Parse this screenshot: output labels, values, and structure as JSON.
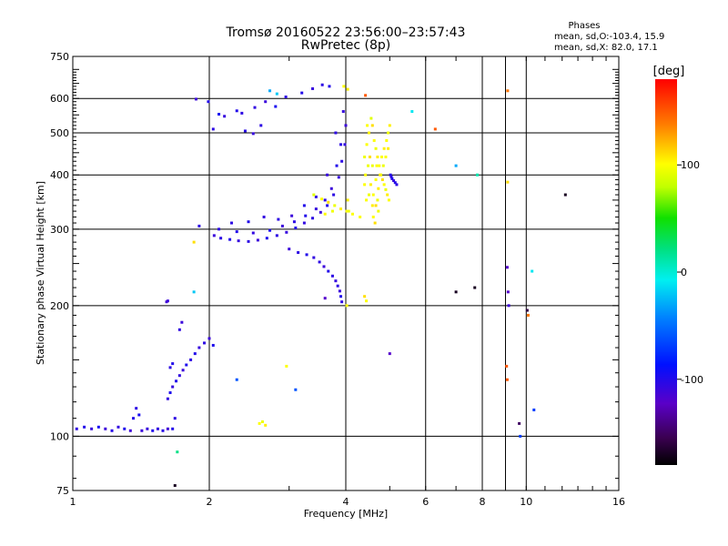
{
  "chart_data": {
    "type": "scatter",
    "title": "Tromsø 20160522 23:56:00–23:57:43",
    "subtitle": "RwPretec (8p)",
    "xlabel": "Frequency [MHz]",
    "ylabel": "Stationary phase Virtual Height [km]",
    "x_scale": "log",
    "y_scale": "log",
    "xlim": [
      1,
      16
    ],
    "ylim": [
      75,
      750
    ],
    "x_ticks": [
      1,
      2,
      4,
      6,
      8,
      9,
      10,
      16
    ],
    "x_tick_labels": [
      "1",
      "2",
      "4",
      "6",
      "8",
      "",
      "10",
      "16"
    ],
    "y_ticks": [
      75,
      100,
      200,
      300,
      400,
      500,
      600,
      750
    ],
    "y_tick_labels": [
      "75",
      "100",
      "200",
      "300",
      "400",
      "500",
      "600",
      "750"
    ],
    "grid": true,
    "legend": {
      "title": "Phases",
      "lines": [
        "mean, sd,O:-103.4, 15.9",
        "mean, sd,X:  82.0, 17.1"
      ]
    },
    "colorbar": {
      "label": "[deg]",
      "range": [
        -180,
        180
      ],
      "ticks": [
        100,
        0,
        -100
      ],
      "tick_labels": [
        "100",
        "0",
        "-100"
      ]
    },
    "series": [
      {
        "values": [
          [
            1.02,
            104,
            -105
          ],
          [
            1.06,
            105,
            -100
          ],
          [
            1.1,
            104,
            -108
          ],
          [
            1.14,
            105,
            -95
          ],
          [
            1.18,
            104,
            -110
          ],
          [
            1.22,
            103,
            -102
          ],
          [
            1.26,
            105,
            -106
          ],
          [
            1.3,
            104,
            -98
          ],
          [
            1.34,
            103,
            -112
          ],
          [
            1.36,
            110,
            -100
          ],
          [
            1.38,
            116,
            -104
          ],
          [
            1.4,
            112,
            -96
          ],
          [
            1.42,
            103,
            -110
          ],
          [
            1.46,
            104,
            -108
          ],
          [
            1.5,
            103,
            -100
          ],
          [
            1.54,
            104,
            -106
          ],
          [
            1.58,
            103,
            -102
          ],
          [
            1.62,
            104,
            -112
          ],
          [
            1.66,
            104,
            -100
          ],
          [
            1.68,
            110,
            -104
          ],
          [
            1.62,
            122,
            -106
          ],
          [
            1.64,
            126,
            -98
          ],
          [
            1.66,
            130,
            -108
          ],
          [
            1.69,
            134,
            -100
          ],
          [
            1.72,
            138,
            -106
          ],
          [
            1.75,
            142,
            -110
          ],
          [
            1.78,
            146,
            -98
          ],
          [
            1.82,
            150,
            -104
          ],
          [
            1.86,
            155,
            -100
          ],
          [
            1.9,
            160,
            -108
          ],
          [
            1.95,
            164,
            -104
          ],
          [
            2.0,
            168,
            -110
          ],
          [
            2.04,
            162,
            -98
          ],
          [
            1.64,
            144,
            -104
          ],
          [
            1.66,
            147,
            -100
          ],
          [
            1.72,
            176,
            -106
          ],
          [
            1.74,
            183,
            -110
          ],
          [
            1.62,
            205,
            -110
          ],
          [
            1.61,
            204,
            -112
          ],
          [
            1.9,
            305,
            -104
          ],
          [
            1.87,
            598,
            -110
          ],
          [
            1.99,
            590,
            -100
          ],
          [
            2.04,
            510,
            -104
          ],
          [
            2.1,
            552,
            -96
          ],
          [
            2.16,
            546,
            -108
          ],
          [
            2.3,
            562,
            -100
          ],
          [
            2.36,
            555,
            -104
          ],
          [
            2.52,
            572,
            -106
          ],
          [
            2.66,
            590,
            -110
          ],
          [
            2.8,
            575,
            -96
          ],
          [
            2.95,
            605,
            -104
          ],
          [
            3.2,
            618,
            -100
          ],
          [
            3.38,
            632,
            -108
          ],
          [
            3.55,
            645,
            -104
          ],
          [
            3.68,
            640,
            -100
          ],
          [
            2.4,
            505,
            -102
          ],
          [
            2.5,
            498,
            -108
          ],
          [
            2.6,
            520,
            -104
          ],
          [
            2.05,
            290,
            -110
          ],
          [
            2.12,
            286,
            -104
          ],
          [
            2.22,
            284,
            -100
          ],
          [
            2.32,
            282,
            -108
          ],
          [
            2.44,
            281,
            -104
          ],
          [
            2.56,
            283,
            -110
          ],
          [
            2.68,
            286,
            -98
          ],
          [
            2.82,
            290,
            -104
          ],
          [
            2.96,
            295,
            -108
          ],
          [
            3.1,
            302,
            -100
          ],
          [
            3.24,
            310,
            -106
          ],
          [
            3.38,
            318,
            -104
          ],
          [
            3.52,
            328,
            -110
          ],
          [
            3.64,
            340,
            -100
          ],
          [
            3.76,
            360,
            -104
          ],
          [
            3.86,
            395,
            -108
          ],
          [
            3.92,
            430,
            -104
          ],
          [
            3.98,
            470,
            -106
          ],
          [
            4.0,
            520,
            -110
          ],
          [
            2.1,
            300,
            -104
          ],
          [
            2.3,
            296,
            -100
          ],
          [
            2.5,
            294,
            -106
          ],
          [
            2.72,
            298,
            -98
          ],
          [
            2.9,
            305,
            -110
          ],
          [
            3.08,
            312,
            -104
          ],
          [
            3.26,
            322,
            -100
          ],
          [
            3.44,
            334,
            -108
          ],
          [
            3.6,
            350,
            -104
          ],
          [
            3.72,
            372,
            -110
          ],
          [
            3.82,
            420,
            -100
          ],
          [
            3.9,
            470,
            -104
          ],
          [
            3.95,
            560,
            -108
          ],
          [
            2.24,
            310,
            -104
          ],
          [
            2.44,
            312,
            -100
          ],
          [
            2.64,
            320,
            -106
          ],
          [
            2.84,
            316,
            -104
          ],
          [
            3.04,
            322,
            -110
          ],
          [
            3.24,
            340,
            -100
          ],
          [
            3.44,
            356,
            -104
          ],
          [
            3.64,
            400,
            -108
          ],
          [
            3.8,
            500,
            -104
          ],
          [
            3.0,
            270,
            -110
          ],
          [
            3.14,
            265,
            -104
          ],
          [
            3.28,
            262,
            -100
          ],
          [
            3.4,
            258,
            -106
          ],
          [
            3.5,
            252,
            -104
          ],
          [
            3.58,
            246,
            -110
          ],
          [
            3.66,
            240,
            -100
          ],
          [
            3.74,
            234,
            -104
          ],
          [
            3.8,
            228,
            -108
          ],
          [
            3.84,
            222,
            -104
          ],
          [
            3.88,
            216,
            -110
          ],
          [
            3.9,
            210,
            -100
          ],
          [
            3.92,
            204,
            -104
          ],
          [
            5.02,
            400,
            -100
          ],
          [
            5.04,
            396,
            -104
          ],
          [
            5.06,
            392,
            -98
          ],
          [
            5.1,
            388,
            -108
          ],
          [
            5.14,
            384,
            -100
          ],
          [
            5.18,
            380,
            -104
          ]
        ]
      },
      {
        "values": [
          [
            2.58,
            107,
            100
          ],
          [
            2.62,
            108,
            95
          ],
          [
            2.66,
            106,
            105
          ],
          [
            2.96,
            145,
            100
          ],
          [
            1.85,
            280,
            110
          ],
          [
            3.4,
            360,
            90
          ],
          [
            3.54,
            352,
            100
          ],
          [
            3.66,
            346,
            110
          ],
          [
            3.78,
            340,
            95
          ],
          [
            3.9,
            334,
            105
          ],
          [
            4.02,
            330,
            100
          ],
          [
            3.6,
            325,
            102
          ],
          [
            3.74,
            330,
            96
          ],
          [
            4.04,
            350,
            105
          ],
          [
            4.4,
            440,
            95
          ],
          [
            4.45,
            470,
            100
          ],
          [
            4.5,
            500,
            105
          ],
          [
            4.55,
            540,
            90
          ],
          [
            4.58,
            520,
            110
          ],
          [
            4.62,
            480,
            100
          ],
          [
            4.66,
            460,
            95
          ],
          [
            4.7,
            440,
            105
          ],
          [
            4.74,
            420,
            100
          ],
          [
            4.78,
            400,
            90
          ],
          [
            4.82,
            390,
            110
          ],
          [
            4.86,
            380,
            100
          ],
          [
            4.9,
            370,
            95
          ],
          [
            4.94,
            360,
            105
          ],
          [
            4.98,
            350,
            100
          ],
          [
            4.42,
            400,
            100
          ],
          [
            4.48,
            420,
            95
          ],
          [
            4.54,
            380,
            105
          ],
          [
            4.6,
            360,
            100
          ],
          [
            4.66,
            340,
            110
          ],
          [
            4.72,
            330,
            95
          ],
          [
            4.8,
            440,
            100
          ],
          [
            4.86,
            460,
            105
          ],
          [
            4.92,
            480,
            100
          ],
          [
            4.96,
            500,
            95
          ],
          [
            5.0,
            520,
            105
          ],
          [
            4.46,
            520,
            100
          ],
          [
            4.52,
            440,
            110
          ],
          [
            4.68,
            420,
            100
          ],
          [
            4.76,
            400,
            105
          ],
          [
            4.84,
            420,
            95
          ],
          [
            4.9,
            440,
            100
          ],
          [
            4.96,
            460,
            105
          ],
          [
            4.4,
            380,
            100
          ],
          [
            4.5,
            360,
            95
          ],
          [
            4.58,
            340,
            105
          ],
          [
            4.6,
            320,
            100
          ],
          [
            4.64,
            310,
            110
          ],
          [
            4.44,
            350,
            100
          ],
          [
            4.7,
            350,
            95
          ],
          [
            3.96,
            640,
            100
          ],
          [
            4.04,
            630,
            105
          ],
          [
            4.06,
            330,
            95
          ],
          [
            4.14,
            325,
            100
          ],
          [
            4.3,
            320,
            100
          ],
          [
            4.4,
            210,
            110
          ],
          [
            4.44,
            205,
            100
          ],
          [
            4.02,
            200,
            100
          ],
          [
            4.58,
            420,
            95
          ],
          [
            4.66,
            390,
            100
          ],
          [
            4.72,
            372,
            105
          ],
          [
            9.05,
            145,
            150
          ],
          [
            9.08,
            135,
            150
          ],
          [
            9.1,
            625,
            140
          ],
          [
            9.1,
            385,
            110
          ]
        ]
      },
      {
        "values": [
          [
            1.7,
            92,
            20
          ],
          [
            1.85,
            215,
            -20
          ],
          [
            2.3,
            135,
            -60
          ],
          [
            3.1,
            128,
            -60
          ],
          [
            5.6,
            560,
            -10
          ],
          [
            4.42,
            610,
            150
          ],
          [
            6.3,
            510,
            150
          ],
          [
            7.0,
            420,
            -30
          ],
          [
            7.8,
            400,
            10
          ],
          [
            9.08,
            245,
            -120
          ],
          [
            9.12,
            215,
            -120
          ],
          [
            9.15,
            200,
            -110
          ],
          [
            9.65,
            107,
            -150
          ],
          [
            10.05,
            195,
            -160
          ],
          [
            10.1,
            190,
            140
          ],
          [
            10.3,
            240,
            -10
          ],
          [
            10.4,
            115,
            -70
          ],
          [
            9.7,
            100,
            -70
          ],
          [
            12.2,
            360,
            -170
          ],
          [
            7.0,
            215,
            -170
          ],
          [
            7.7,
            220,
            -170
          ],
          [
            5.0,
            155,
            -120
          ],
          [
            3.6,
            208,
            -120
          ],
          [
            1.68,
            77,
            -170
          ],
          [
            2.72,
            625,
            -30
          ],
          [
            2.82,
            615,
            -20
          ]
        ]
      }
    ]
  }
}
